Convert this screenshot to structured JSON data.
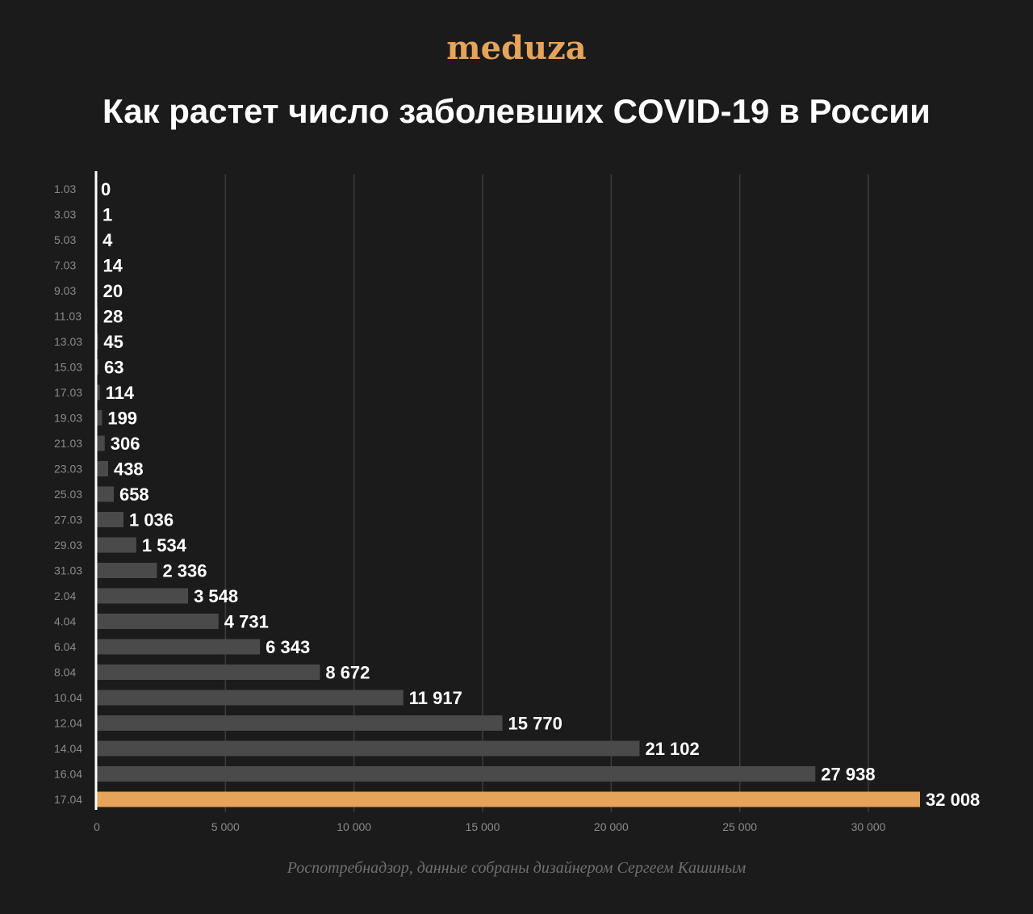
{
  "logo": "meduza",
  "title": "Как растет число заболевших COVID-19 в России",
  "source": "Роспотребнадзор, данные собраны дизайнером Сергеем Кашиным",
  "colors": {
    "background": "#1b1b1b",
    "bar": "#4a4a4a",
    "highlight": "#e6a35a",
    "grid": "#3c3c3c",
    "axis": "#ffffff",
    "label": "#ffffff",
    "tick": "#8a8a8a"
  },
  "chart_data": {
    "type": "bar",
    "orientation": "horizontal",
    "categories": [
      "1.03",
      "3.03",
      "5.03",
      "7.03",
      "9.03",
      "11.03",
      "13.03",
      "15.03",
      "17.03",
      "19.03",
      "21.03",
      "23.03",
      "25.03",
      "27.03",
      "29.03",
      "31.03",
      "2.04",
      "4.04",
      "6.04",
      "8.04",
      "10.04",
      "12.04",
      "14.04",
      "16.04",
      "17.04"
    ],
    "values": [
      0,
      1,
      4,
      14,
      20,
      28,
      45,
      63,
      114,
      199,
      306,
      438,
      658,
      1036,
      1534,
      2336,
      3548,
      4731,
      6343,
      8672,
      11917,
      15770,
      21102,
      27938,
      32008
    ],
    "value_labels": [
      "0",
      "1",
      "4",
      "14",
      "20",
      "28",
      "45",
      "63",
      "114",
      "199",
      "306",
      "438",
      "658",
      "1 036",
      "1 534",
      "2 336",
      "3 548",
      "4 731",
      "6 343",
      "8 672",
      "11 917",
      "15 770",
      "21 102",
      "27 938",
      "32 008"
    ],
    "highlight_index": 24,
    "xlim": [
      0,
      32008
    ],
    "xticks": [
      0,
      5000,
      10000,
      15000,
      20000,
      25000,
      30000
    ],
    "xtick_labels": [
      "0",
      "5 000",
      "10 000",
      "15 000",
      "20 000",
      "25 000",
      "30 000"
    ],
    "grid": "vertical"
  }
}
